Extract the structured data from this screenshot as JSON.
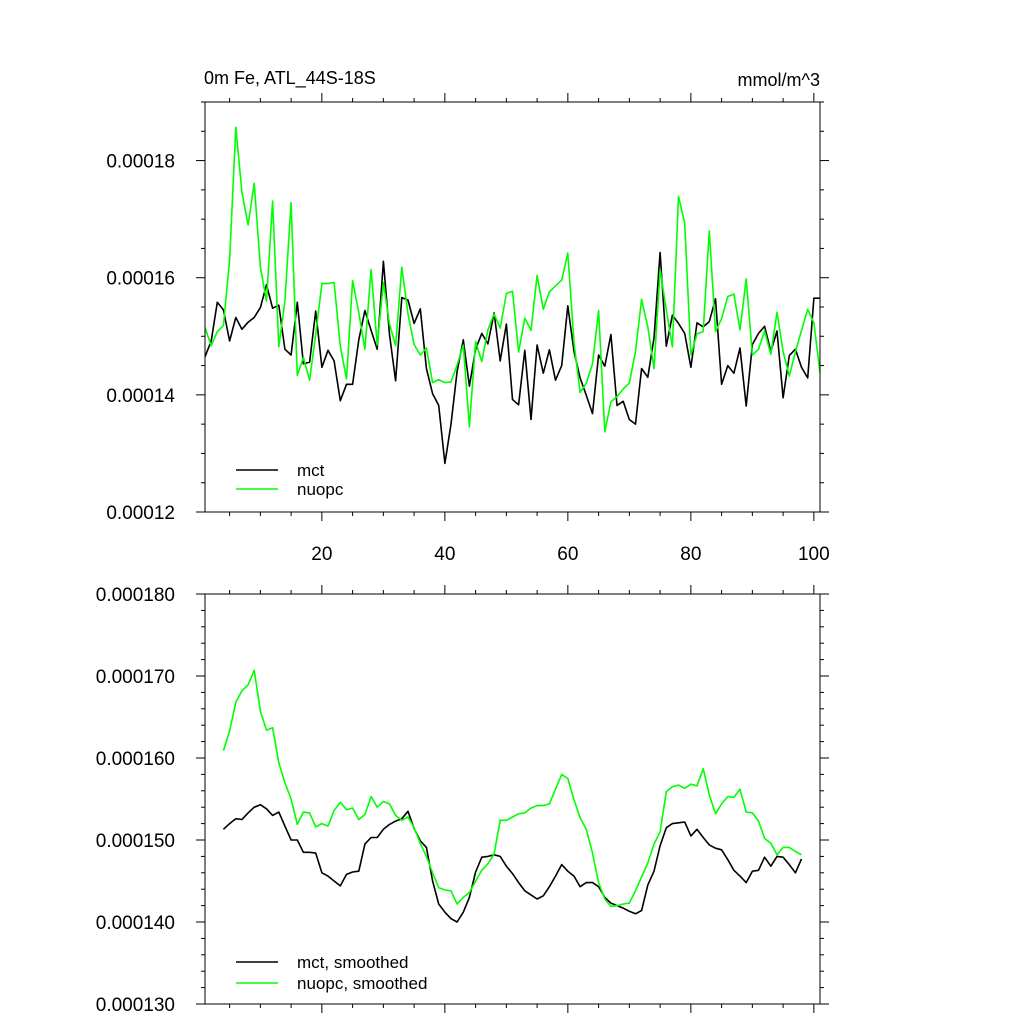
{
  "chart_data": [
    {
      "type": "line",
      "title": "0m Fe, ATL_44S-18S",
      "units": "mmol/m^3",
      "xlabel": "",
      "ylabel": "",
      "xlim": [
        1,
        101
      ],
      "ylim": [
        0.00012,
        0.00019
      ],
      "xticks": [
        20,
        40,
        60,
        80,
        100
      ],
      "xtick_labels": [
        "20",
        "40",
        "60",
        "80",
        "100"
      ],
      "yticks": [
        0.00012,
        0.00014,
        0.00016,
        0.00018
      ],
      "ytick_labels": [
        "0.00012",
        "0.00014",
        "0.00016",
        "0.00018"
      ],
      "legend_position": "bottom-left",
      "series": [
        {
          "name": "mct",
          "color": "#000000",
          "x": [
            1,
            2,
            3,
            4,
            5,
            6,
            7,
            8,
            9,
            10,
            11,
            12,
            13,
            14,
            15,
            16,
            17,
            18,
            19,
            20,
            21,
            22,
            23,
            24,
            25,
            26,
            27,
            28,
            29,
            30,
            31,
            32,
            33,
            34,
            35,
            36,
            37,
            38,
            39,
            40,
            41,
            42,
            43,
            44,
            45,
            46,
            47,
            48,
            49,
            50,
            51,
            52,
            53,
            54,
            55,
            56,
            57,
            58,
            59,
            60,
            61,
            62,
            63,
            64,
            65,
            66,
            67,
            68,
            69,
            70,
            71,
            72,
            73,
            74,
            75,
            76,
            77,
            78,
            79,
            80,
            81,
            82,
            83,
            84,
            85,
            86,
            87,
            88,
            89,
            90,
            91,
            92,
            93,
            94,
            95,
            96,
            97,
            98,
            99,
            100,
            101
          ],
          "values": [
            0.0001465,
            0.0001492,
            0.0001558,
            0.0001545,
            0.0001492,
            0.0001532,
            0.0001512,
            0.0001524,
            0.0001532,
            0.0001549,
            0.0001588,
            0.0001548,
            0.0001553,
            0.0001478,
            0.0001468,
            0.0001558,
            0.0001453,
            0.0001456,
            0.0001543,
            0.0001447,
            0.0001476,
            0.0001458,
            0.000139,
            0.0001418,
            0.0001418,
            0.0001494,
            0.0001544,
            0.000151,
            0.0001478,
            0.0001628,
            0.0001503,
            0.0001424,
            0.0001566,
            0.0001562,
            0.0001522,
            0.0001547,
            0.0001445,
            0.0001402,
            0.0001382,
            0.0001283,
            0.000135,
            0.000144,
            0.0001494,
            0.0001415,
            0.0001478,
            0.0001505,
            0.0001487,
            0.000154,
            0.0001458,
            0.0001521,
            0.0001392,
            0.0001383,
            0.0001476,
            0.0001358,
            0.0001485,
            0.0001437,
            0.0001477,
            0.0001425,
            0.000145,
            0.0001552,
            0.0001474,
            0.0001429,
            0.0001399,
            0.0001368,
            0.0001468,
            0.0001449,
            0.0001503,
            0.0001382,
            0.0001389,
            0.0001358,
            0.000135,
            0.0001445,
            0.000143,
            0.0001497,
            0.0001643,
            0.0001483,
            0.0001536,
            0.0001522,
            0.0001505,
            0.0001447,
            0.0001523,
            0.0001516,
            0.0001525,
            0.0001564,
            0.0001418,
            0.000145,
            0.0001437,
            0.000148,
            0.0001381,
            0.0001486,
            0.0001505,
            0.0001517,
            0.0001474,
            0.0001509,
            0.0001395,
            0.0001467,
            0.0001478,
            0.0001447,
            0.0001429,
            0.0001565,
            0.0001565
          ]
        },
        {
          "name": "nuopc",
          "color": "#00ff00",
          "x": [
            1,
            2,
            3,
            4,
            5,
            6,
            7,
            8,
            9,
            10,
            11,
            12,
            13,
            14,
            15,
            16,
            17,
            18,
            19,
            20,
            21,
            22,
            23,
            24,
            25,
            26,
            27,
            28,
            29,
            30,
            31,
            32,
            33,
            34,
            35,
            36,
            37,
            38,
            39,
            40,
            41,
            42,
            43,
            44,
            45,
            46,
            47,
            48,
            49,
            50,
            51,
            52,
            53,
            54,
            55,
            56,
            57,
            58,
            59,
            60,
            61,
            62,
            63,
            64,
            65,
            66,
            67,
            68,
            69,
            70,
            71,
            72,
            73,
            74,
            75,
            76,
            77,
            78,
            79,
            80,
            81,
            82,
            83,
            84,
            85,
            86,
            87,
            88,
            89,
            90,
            91,
            92,
            93,
            94,
            95,
            96,
            97,
            98,
            99,
            100,
            101
          ],
          "values": [
            0.0001515,
            0.0001484,
            0.0001508,
            0.0001518,
            0.000163,
            0.0001857,
            0.0001746,
            0.000169,
            0.0001761,
            0.0001618,
            0.000156,
            0.0001731,
            0.0001482,
            0.000156,
            0.0001728,
            0.0001433,
            0.0001464,
            0.0001425,
            0.0001503,
            0.000159,
            0.000159,
            0.0001592,
            0.0001483,
            0.0001427,
            0.0001595,
            0.000154,
            0.0001478,
            0.0001614,
            0.0001485,
            0.0001592,
            0.0001521,
            0.0001484,
            0.0001618,
            0.0001538,
            0.0001486,
            0.0001468,
            0.000148,
            0.0001421,
            0.0001426,
            0.0001421,
            0.0001422,
            0.0001451,
            0.0001485,
            0.0001345,
            0.0001491,
            0.0001457,
            0.0001511,
            0.0001538,
            0.0001514,
            0.0001573,
            0.0001577,
            0.0001473,
            0.0001531,
            0.000151,
            0.0001604,
            0.0001546,
            0.0001576,
            0.0001586,
            0.0001596,
            0.0001642,
            0.0001489,
            0.0001404,
            0.000142,
            0.0001453,
            0.0001544,
            0.0001337,
            0.0001388,
            0.0001397,
            0.000141,
            0.000142,
            0.0001474,
            0.0001563,
            0.0001516,
            0.0001445,
            0.0001614,
            0.0001545,
            0.0001482,
            0.0001739,
            0.0001693,
            0.0001468,
            0.0001504,
            0.0001508,
            0.000168,
            0.0001508,
            0.000153,
            0.0001568,
            0.0001572,
            0.0001511,
            0.0001598,
            0.0001468,
            0.0001478,
            0.0001509,
            0.0001469,
            0.0001541,
            0.0001474,
            0.0001432,
            0.0001473,
            0.000151,
            0.0001546,
            0.0001523,
            0.0001438
          ]
        }
      ],
      "legend": [
        {
          "label": "mct",
          "color": "#000000"
        },
        {
          "label": "nuopc",
          "color": "#00ff00"
        }
      ]
    },
    {
      "type": "line",
      "title": "",
      "xlabel": "",
      "ylabel": "",
      "xlim": [
        1,
        101
      ],
      "ylim": [
        0.00013,
        0.00018
      ],
      "xticks": [
        20,
        40,
        60,
        80,
        100
      ],
      "xtick_labels": [],
      "yticks": [
        0.00013,
        0.00014,
        0.00015,
        0.00016,
        0.00017,
        0.00018
      ],
      "ytick_labels": [
        "0.000130",
        "0.000140",
        "0.000150",
        "0.000160",
        "0.000170",
        "0.000180"
      ],
      "legend_position": "bottom-left",
      "series": [
        {
          "name": "mct, smoothed",
          "color": "#000000",
          "x": [
            4,
            5,
            6,
            7,
            8,
            9,
            10,
            11,
            12,
            13,
            14,
            15,
            16,
            17,
            18,
            19,
            20,
            21,
            22,
            23,
            24,
            25,
            26,
            27,
            28,
            29,
            30,
            31,
            32,
            33,
            34,
            35,
            36,
            37,
            38,
            39,
            40,
            41,
            42,
            43,
            44,
            45,
            46,
            47,
            48,
            49,
            50,
            51,
            52,
            53,
            54,
            55,
            56,
            57,
            58,
            59,
            60,
            61,
            62,
            63,
            64,
            65,
            66,
            67,
            68,
            69,
            70,
            71,
            72,
            73,
            74,
            75,
            76,
            77,
            78,
            79,
            80,
            81,
            82,
            83,
            84,
            85,
            86,
            87,
            88,
            89,
            90,
            91,
            92,
            93,
            94,
            95,
            96,
            97,
            98
          ],
          "values": [
            0.0001513,
            0.000152,
            0.0001526,
            0.0001525,
            0.0001533,
            0.000154,
            0.0001543,
            0.0001538,
            0.000153,
            0.0001534,
            0.0001517,
            0.00015,
            0.00015,
            0.0001485,
            0.0001485,
            0.0001484,
            0.000146,
            0.0001456,
            0.000145,
            0.0001444,
            0.0001458,
            0.0001461,
            0.0001462,
            0.0001495,
            0.0001503,
            0.0001503,
            0.0001513,
            0.0001519,
            0.0001523,
            0.0001526,
            0.0001535,
            0.0001514,
            0.0001499,
            0.0001491,
            0.000145,
            0.0001422,
            0.0001412,
            0.0001404,
            0.00014,
            0.0001412,
            0.000143,
            0.0001461,
            0.0001479,
            0.000148,
            0.0001482,
            0.000148,
            0.0001468,
            0.0001459,
            0.0001448,
            0.0001438,
            0.0001433,
            0.0001428,
            0.0001432,
            0.0001443,
            0.0001456,
            0.000147,
            0.0001462,
            0.0001456,
            0.0001443,
            0.0001448,
            0.0001448,
            0.0001443,
            0.000143,
            0.0001423,
            0.000142,
            0.0001417,
            0.0001413,
            0.000141,
            0.0001414,
            0.0001445,
            0.0001462,
            0.0001493,
            0.0001515,
            0.000152,
            0.0001521,
            0.0001522,
            0.0001505,
            0.0001513,
            0.0001503,
            0.0001494,
            0.000149,
            0.0001488,
            0.0001476,
            0.0001463,
            0.0001456,
            0.0001448,
            0.0001462,
            0.0001463,
            0.0001479,
            0.0001468,
            0.000148,
            0.0001479,
            0.000147,
            0.000146,
            0.0001477
          ]
        },
        {
          "name": "nuopc, smoothed",
          "color": "#00ff00",
          "x": [
            4,
            5,
            6,
            7,
            8,
            9,
            10,
            11,
            12,
            13,
            14,
            15,
            16,
            17,
            18,
            19,
            20,
            21,
            22,
            23,
            24,
            25,
            26,
            27,
            28,
            29,
            30,
            31,
            32,
            33,
            34,
            35,
            36,
            37,
            38,
            39,
            40,
            41,
            42,
            43,
            44,
            45,
            46,
            47,
            48,
            49,
            50,
            51,
            52,
            53,
            54,
            55,
            56,
            57,
            58,
            59,
            60,
            61,
            62,
            63,
            64,
            65,
            66,
            67,
            68,
            69,
            70,
            71,
            72,
            73,
            74,
            75,
            76,
            77,
            78,
            79,
            80,
            81,
            82,
            83,
            84,
            85,
            86,
            87,
            88,
            89,
            90,
            91,
            92,
            93,
            94,
            95,
            96,
            97,
            98
          ],
          "values": [
            0.0001609,
            0.0001633,
            0.0001668,
            0.0001682,
            0.0001689,
            0.0001707,
            0.0001657,
            0.0001634,
            0.0001637,
            0.0001594,
            0.000157,
            0.000155,
            0.0001519,
            0.0001534,
            0.0001533,
            0.0001516,
            0.000152,
            0.0001517,
            0.0001536,
            0.0001546,
            0.0001537,
            0.0001539,
            0.0001525,
            0.0001531,
            0.0001553,
            0.000154,
            0.0001547,
            0.0001544,
            0.000153,
            0.0001524,
            0.0001528,
            0.0001515,
            0.0001496,
            0.000148,
            0.000146,
            0.0001442,
            0.0001439,
            0.0001438,
            0.0001422,
            0.000143,
            0.0001436,
            0.000145,
            0.0001463,
            0.0001471,
            0.0001483,
            0.0001524,
            0.0001524,
            0.0001528,
            0.0001532,
            0.0001533,
            0.0001539,
            0.0001542,
            0.0001542,
            0.0001544,
            0.0001562,
            0.000158,
            0.0001575,
            0.0001549,
            0.0001527,
            0.0001513,
            0.0001484,
            0.0001448,
            0.0001428,
            0.0001419,
            0.000142,
            0.0001422,
            0.0001423,
            0.0001438,
            0.0001455,
            0.0001472,
            0.0001495,
            0.000151,
            0.0001559,
            0.0001565,
            0.0001567,
            0.0001563,
            0.0001568,
            0.0001566,
            0.0001587,
            0.0001555,
            0.0001532,
            0.0001544,
            0.0001553,
            0.0001552,
            0.0001562,
            0.0001534,
            0.0001533,
            0.0001523,
            0.0001502,
            0.0001496,
            0.0001482,
            0.0001491,
            0.0001491,
            0.0001486,
            0.0001482
          ]
        }
      ],
      "legend": [
        {
          "label": "mct, smoothed",
          "color": "#000000"
        },
        {
          "label": "nuopc, smoothed",
          "color": "#00ff00"
        }
      ]
    }
  ]
}
